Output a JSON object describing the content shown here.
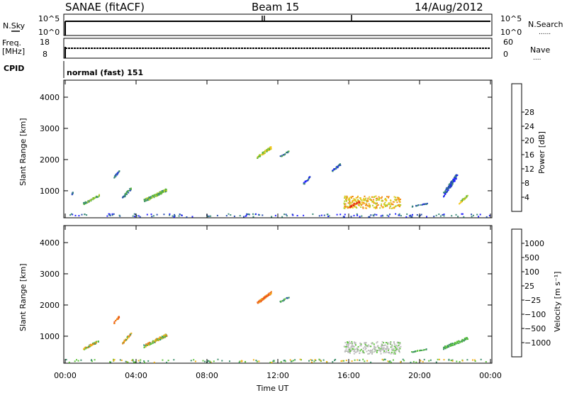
{
  "header": {
    "station": "SANAE (fitACF)",
    "beam": "Beam 15",
    "date": "14/Aug/2012"
  },
  "noise_panel": {
    "left_label": "N.Sky",
    "right_label": "N.Search",
    "right_dots": "......",
    "ticks": [
      "10^5",
      "10^0"
    ]
  },
  "freq_panel": {
    "left_label_1": "Freq.",
    "left_label_2": "[MHz]",
    "left_ticks": [
      "18",
      "8"
    ],
    "right_label": "Nave",
    "right_dots": "....",
    "right_ticks": [
      "60",
      "0"
    ]
  },
  "cpid_panel": {
    "label": "CPID",
    "value": "normal (fast) 151"
  },
  "chart_data": [
    {
      "type": "heatmap",
      "name": "power",
      "ylabel": "Slant Range [km]",
      "ylim": [
        180,
        4500
      ],
      "yticks": [
        1000,
        2000,
        3000,
        4000
      ],
      "xlim": [
        0,
        24
      ],
      "colorbar": {
        "label": "Power [dB]",
        "ticks": [
          "4",
          "8",
          "12",
          "16",
          "20",
          "24",
          "28"
        ],
        "colors": [
          "#1f1fff",
          "#2449b0",
          "#3a8a7a",
          "#58b43c",
          "#b5d12c",
          "#f3c51b",
          "#f28a18",
          "#ef5a14",
          "#e31a1c"
        ]
      },
      "echoes": [
        {
          "t0": 0.35,
          "t1": 0.4,
          "r0": 900,
          "r1": 980,
          "level": 1
        },
        {
          "t0": 1.0,
          "t1": 1.9,
          "r0": 580,
          "r1": 900,
          "level": 3
        },
        {
          "t0": 2.7,
          "t1": 3.05,
          "r0": 1400,
          "r1": 1700,
          "level": 1
        },
        {
          "t0": 3.2,
          "t1": 3.7,
          "r0": 750,
          "r1": 1150,
          "level": 2
        },
        {
          "t0": 4.4,
          "t1": 5.7,
          "r0": 650,
          "r1": 1100,
          "level": 3
        },
        {
          "t0": 10.8,
          "t1": 11.6,
          "r0": 2050,
          "r1": 2450,
          "level": 4
        },
        {
          "t0": 12.1,
          "t1": 12.6,
          "r0": 2100,
          "r1": 2300,
          "level": 2
        },
        {
          "t0": 13.4,
          "t1": 13.8,
          "r0": 1200,
          "r1": 1500,
          "level": 1
        },
        {
          "t0": 15.0,
          "t1": 15.5,
          "r0": 1600,
          "r1": 1900,
          "level": 1
        },
        {
          "t0": 15.7,
          "t1": 18.9,
          "r0": 450,
          "r1": 850,
          "level": 5
        },
        {
          "t0": 15.9,
          "t1": 16.6,
          "r0": 450,
          "r1": 700,
          "level": 7
        },
        {
          "t0": 19.5,
          "t1": 20.4,
          "r0": 500,
          "r1": 620,
          "level": 1
        },
        {
          "t0": 21.3,
          "t1": 22.1,
          "r0": 800,
          "r1": 1600,
          "level": 1
        },
        {
          "t0": 22.2,
          "t1": 22.7,
          "r0": 600,
          "r1": 900,
          "level": 4
        },
        {
          "t0": 0.0,
          "t1": 24.0,
          "r0": 180,
          "r1": 280,
          "level": 1
        }
      ]
    },
    {
      "type": "heatmap",
      "name": "velocity",
      "ylabel": "Slant Range [km]",
      "xlabel": "Time UT",
      "ylim": [
        180,
        4500
      ],
      "yticks": [
        1000,
        2000,
        3000,
        4000
      ],
      "xlim": [
        0,
        24
      ],
      "xticks": [
        "00:00",
        "04:00",
        "08:00",
        "12:00",
        "16:00",
        "20:00",
        "00:00"
      ],
      "colorbar": {
        "label": "Velocity [m s⁻¹]",
        "ticks": [
          "1000",
          "500",
          "100",
          "25",
          "−25",
          "−100",
          "−500",
          "−1000"
        ],
        "colors": [
          "#1f1fcc",
          "#2c5aa8",
          "#3c8f6a",
          "#5ec43c",
          "#bdbdbd",
          "#f2b21a",
          "#ef7f16",
          "#ec4c1e",
          "#e31a1c"
        ]
      },
      "echoes": [
        {
          "t0": 1.0,
          "t1": 1.9,
          "r0": 580,
          "r1": 900,
          "vel": "orange-green"
        },
        {
          "t0": 2.7,
          "t1": 3.05,
          "r0": 1400,
          "r1": 1700,
          "vel": "orange"
        },
        {
          "t0": 3.2,
          "t1": 3.7,
          "r0": 750,
          "r1": 1150,
          "vel": "orange-green"
        },
        {
          "t0": 4.4,
          "t1": 5.7,
          "r0": 650,
          "r1": 1100,
          "vel": "orange-green"
        },
        {
          "t0": 10.8,
          "t1": 11.6,
          "r0": 2050,
          "r1": 2450,
          "vel": "orange"
        },
        {
          "t0": 12.1,
          "t1": 12.6,
          "r0": 2100,
          "r1": 2300,
          "vel": "blue-green"
        },
        {
          "t0": 15.7,
          "t1": 18.9,
          "r0": 450,
          "r1": 850,
          "vel": "gray"
        },
        {
          "t0": 19.5,
          "t1": 20.4,
          "r0": 500,
          "r1": 620,
          "vel": "green"
        },
        {
          "t0": 21.3,
          "t1": 22.7,
          "r0": 600,
          "r1": 1000,
          "vel": "green"
        },
        {
          "t0": 0.0,
          "t1": 24.0,
          "r0": 180,
          "r1": 280,
          "vel": "green-orange"
        }
      ]
    }
  ]
}
